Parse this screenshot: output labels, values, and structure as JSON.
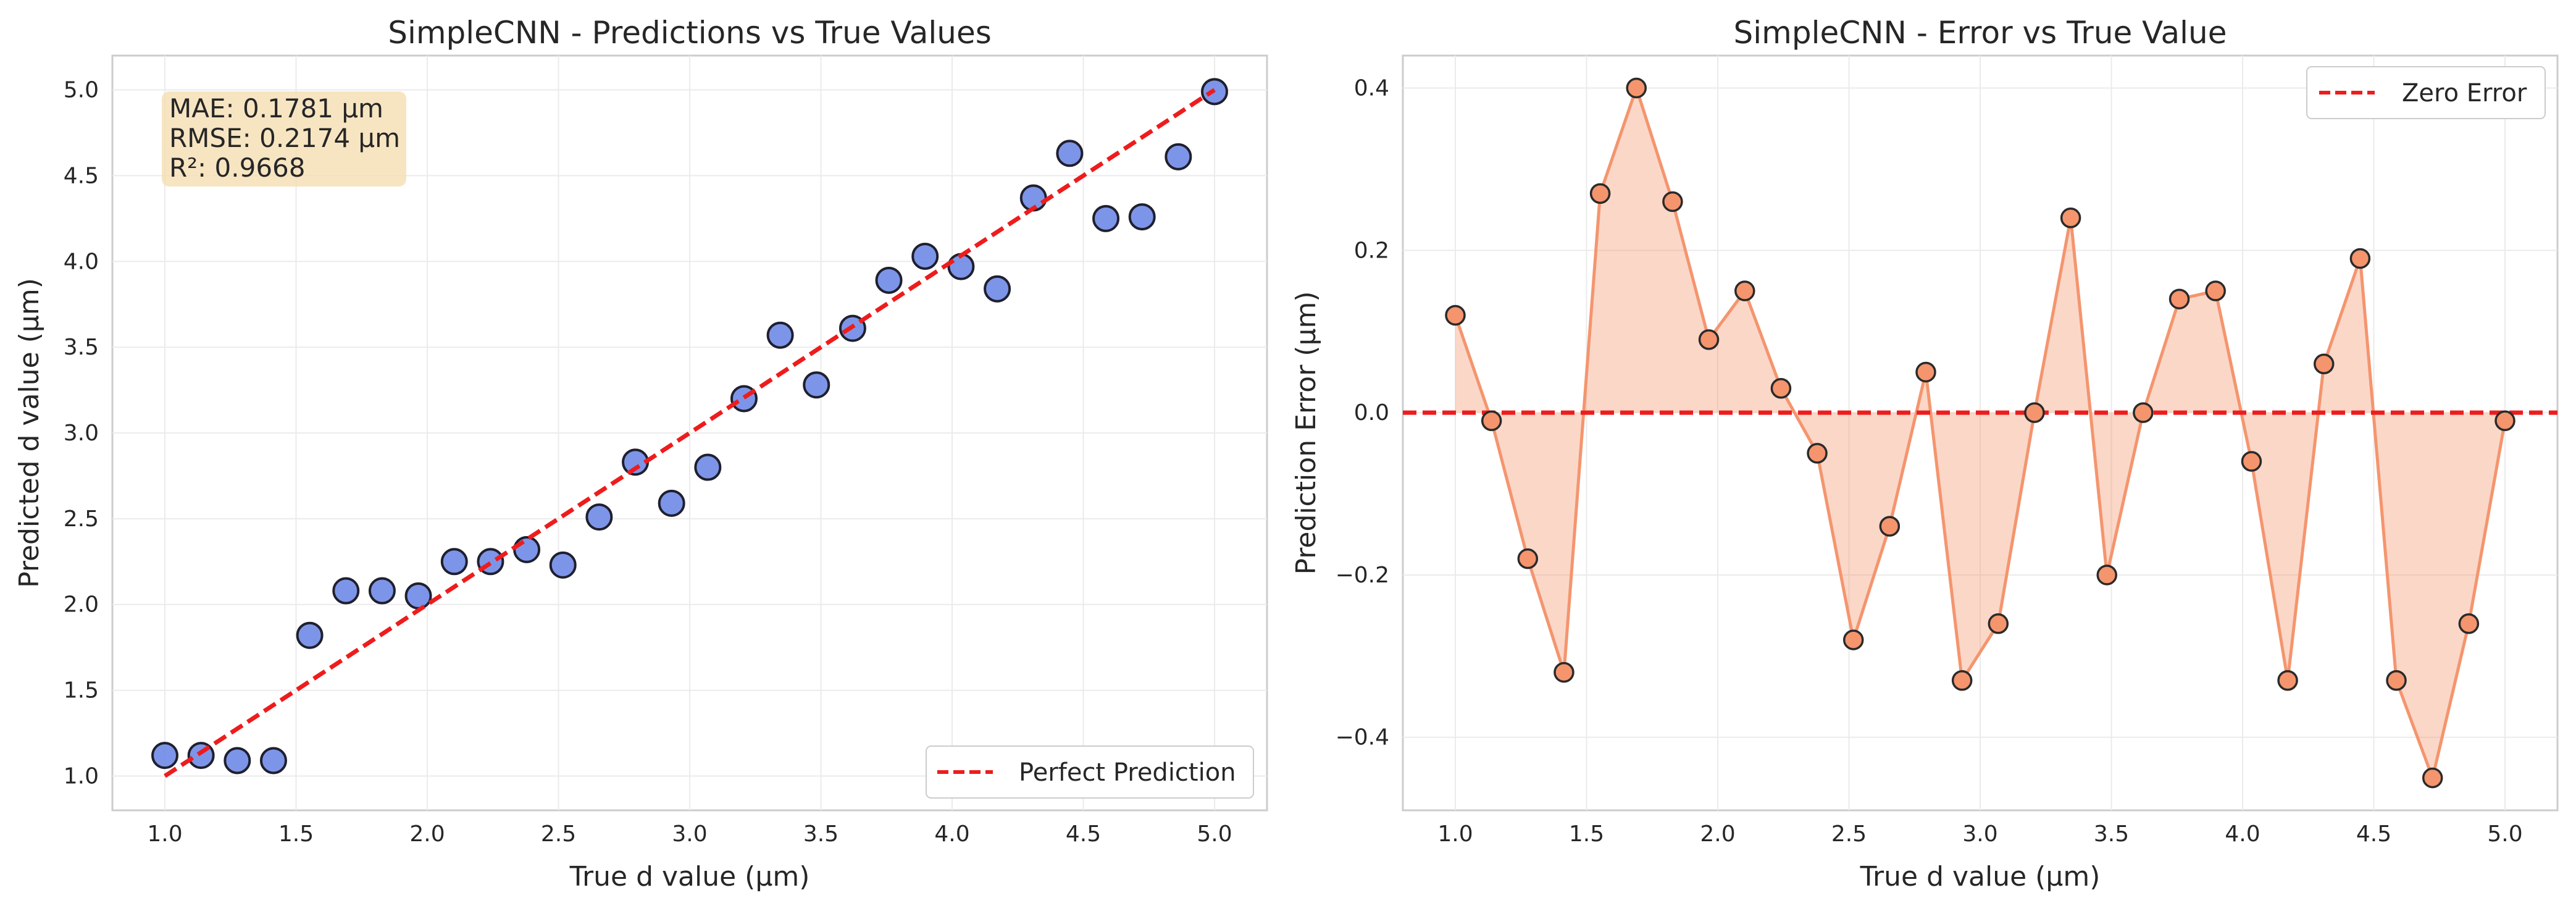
{
  "chart_data": [
    {
      "type": "scatter",
      "title": "SimpleCNN - Predictions vs True Values",
      "xlabel": "True d value (μm)",
      "ylabel": "Predicted d value (μm)",
      "xlim": [
        0.8,
        5.2
      ],
      "ylim": [
        0.8,
        5.2
      ],
      "xticks": [
        "1.0",
        "1.5",
        "2.0",
        "2.5",
        "3.0",
        "3.5",
        "4.0",
        "4.5",
        "5.0"
      ],
      "yticks": [
        "1.0",
        "1.5",
        "2.0",
        "2.5",
        "3.0",
        "3.5",
        "4.0",
        "4.5",
        "5.0"
      ],
      "grid": true,
      "legend_position": "lower-right",
      "stats_box": {
        "lines": [
          "MAE: 0.1781 μm",
          "RMSE: 0.2174 μm",
          "R²: 0.9668"
        ]
      },
      "series": [
        {
          "kind": "points",
          "color": "#6f8ae6",
          "x": [
            1.0,
            1.138,
            1.276,
            1.414,
            1.552,
            1.69,
            1.828,
            1.966,
            2.103,
            2.241,
            2.379,
            2.517,
            2.655,
            2.793,
            2.931,
            3.069,
            3.207,
            3.345,
            3.483,
            3.621,
            3.759,
            3.897,
            4.034,
            4.172,
            4.31,
            4.448,
            4.586,
            4.724,
            4.862,
            5.0
          ],
          "y": [
            1.12,
            1.12,
            1.09,
            1.09,
            1.82,
            2.08,
            2.08,
            2.05,
            2.25,
            2.25,
            2.32,
            2.23,
            2.51,
            2.83,
            2.59,
            2.8,
            3.2,
            3.57,
            3.28,
            3.61,
            3.89,
            4.03,
            3.97,
            3.84,
            4.37,
            4.63,
            4.25,
            4.26,
            4.61,
            4.99
          ]
        },
        {
          "name": "Perfect Prediction",
          "kind": "dashed-line",
          "color": "#ee1c1c",
          "x": [
            1.0,
            5.0
          ],
          "y": [
            1.0,
            5.0
          ]
        }
      ]
    },
    {
      "type": "line",
      "title": "SimpleCNN - Error vs True Value",
      "xlabel": "True d value (μm)",
      "ylabel": "Prediction Error (μm)",
      "xlim": [
        0.8,
        5.2
      ],
      "ylim": [
        -0.49,
        0.44
      ],
      "xticks": [
        "1.0",
        "1.5",
        "2.0",
        "2.5",
        "3.0",
        "3.5",
        "4.0",
        "4.5",
        "5.0"
      ],
      "yticks": [
        "−0.4",
        "−0.2",
        "0.0",
        "0.2",
        "0.4"
      ],
      "grid": true,
      "legend_position": "top-right",
      "series": [
        {
          "kind": "line-filled-markers",
          "color": "#f4956e",
          "x": [
            1.0,
            1.138,
            1.276,
            1.414,
            1.552,
            1.69,
            1.828,
            1.966,
            2.103,
            2.241,
            2.379,
            2.517,
            2.655,
            2.793,
            2.931,
            3.069,
            3.207,
            3.345,
            3.483,
            3.621,
            3.759,
            3.897,
            4.034,
            4.172,
            4.31,
            4.448,
            4.586,
            4.724,
            4.862,
            5.0
          ],
          "y": [
            0.12,
            -0.01,
            -0.18,
            -0.32,
            0.27,
            0.4,
            0.26,
            0.09,
            0.15,
            0.03,
            -0.05,
            -0.28,
            -0.14,
            0.05,
            -0.33,
            -0.26,
            0.0,
            0.24,
            -0.2,
            0.0,
            0.14,
            0.15,
            -0.06,
            -0.33,
            0.06,
            0.19,
            -0.33,
            -0.45,
            -0.26,
            -0.01
          ]
        },
        {
          "name": "Zero Error",
          "kind": "dashed-line",
          "color": "#ee1c1c",
          "y": 0.0
        }
      ]
    }
  ]
}
